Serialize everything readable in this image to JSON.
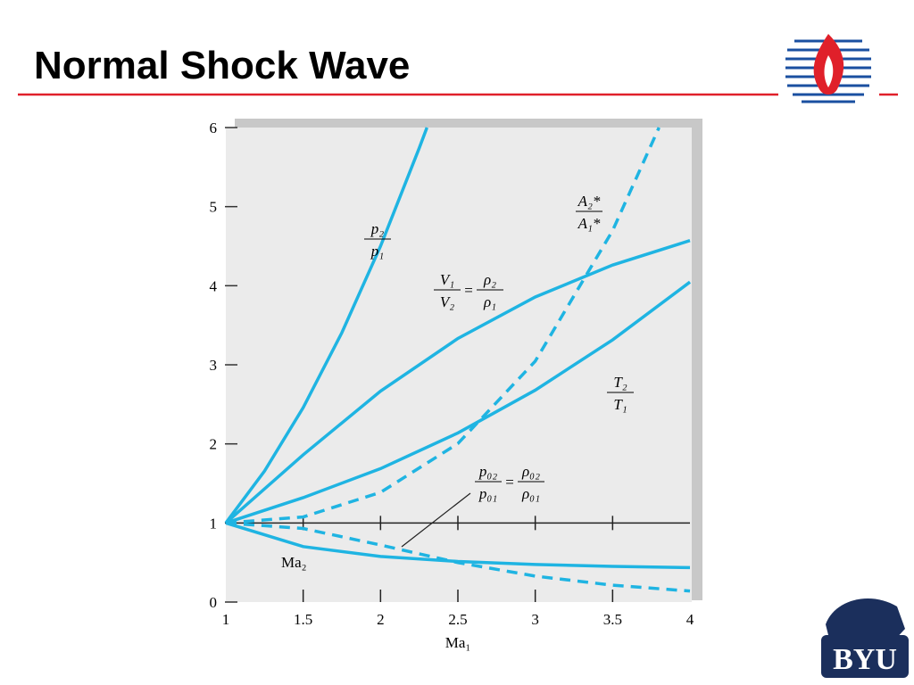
{
  "slide_title": "Normal Shock Wave",
  "logo_text": "BYU",
  "chart_data": {
    "type": "line",
    "x_label": "Ma₁",
    "xlim": [
      1,
      4
    ],
    "xticks": [
      1,
      1.5,
      2,
      2.5,
      3,
      3.5,
      4
    ],
    "ylim": [
      0,
      6
    ],
    "yticks": [
      0,
      1,
      2,
      3,
      4,
      5,
      6
    ],
    "reference_line": 1,
    "grid": false,
    "series": [
      {
        "color": "#1fb4e2",
        "dash": false,
        "label": {
          "fractions": [
            [
              "p₂",
              "p₁"
            ]
          ]
        },
        "x": [
          1,
          1.25,
          1.5,
          1.75,
          2,
          2.25,
          2.3
        ],
        "values": [
          1,
          1.656,
          2.458,
          3.406,
          4.5,
          5.74,
          6
        ]
      },
      {
        "color": "#1fb4e2",
        "dash": false,
        "label": {
          "fractions": [
            [
              "V₁",
              "V₂"
            ],
            [
              "ρ₂",
              "ρ₁"
            ]
          ],
          "joiner": "="
        },
        "x": [
          1,
          1.5,
          2,
          2.5,
          3,
          3.5,
          4
        ],
        "values": [
          1,
          1.862,
          2.667,
          3.333,
          3.857,
          4.261,
          4.571
        ]
      },
      {
        "color": "#1fb4e2",
        "dash": false,
        "label": {
          "fractions": [
            [
              "T₂",
              "T₁"
            ]
          ]
        },
        "x": [
          1,
          1.5,
          2,
          2.5,
          3,
          3.5,
          4
        ],
        "values": [
          1,
          1.32,
          1.687,
          2.138,
          2.679,
          3.315,
          4.047
        ]
      },
      {
        "color": "#1fb4e2",
        "dash": false,
        "label": {
          "text": "Ma₂"
        },
        "x": [
          1,
          1.5,
          2,
          2.5,
          3,
          3.5,
          4
        ],
        "values": [
          1,
          0.701,
          0.577,
          0.513,
          0.475,
          0.451,
          0.435
        ]
      },
      {
        "color": "#1fb4e2",
        "dash": true,
        "label": {
          "fractions": [
            [
              "A₂*",
              "A₁*"
            ]
          ]
        },
        "x": [
          1,
          1.5,
          2,
          2.5,
          3,
          3.5,
          3.8
        ],
        "values": [
          1,
          1.076,
          1.387,
          2.004,
          3.046,
          4.697,
          6
        ]
      },
      {
        "color": "#1fb4e2",
        "dash": true,
        "label": {
          "fractions": [
            [
              "p₀₂",
              "p₀₁"
            ],
            [
              "ρ₀₂",
              "ρ₀₁"
            ]
          ],
          "joiner": "="
        },
        "x": [
          1,
          1.5,
          2,
          2.5,
          3,
          3.5,
          4
        ],
        "values": [
          1,
          0.93,
          0.721,
          0.499,
          0.328,
          0.213,
          0.139
        ]
      }
    ]
  }
}
